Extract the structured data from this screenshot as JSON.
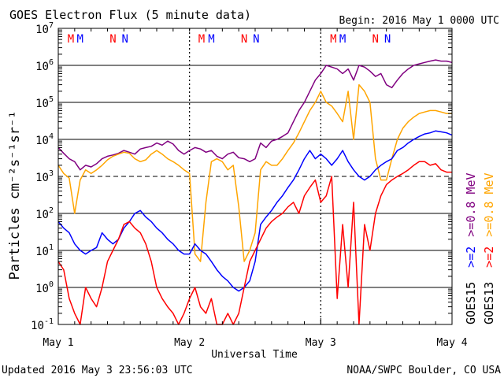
{
  "chart_data": {
    "type": "line",
    "title": "GOES Electron Flux (5 minute data)",
    "begin_label": "Begin: 2016 May 1 0000 UTC",
    "xlabel": "Universal Time",
    "ylabel": "Particles cm⁻²s⁻¹sr⁻¹",
    "yscale": "log",
    "ylim": [
      0.1,
      10000000
    ],
    "xlim": [
      0,
      72
    ],
    "x_unit": "hours since 2016 May 1 0000 UTC",
    "x_ticks": [
      "May 1",
      "May 2",
      "May 3",
      "May 4"
    ],
    "x_tick_hours": [
      0,
      24,
      48,
      72
    ],
    "y_ticks": [
      {
        "base": "10",
        "exp": "-1",
        "value": 0.1
      },
      {
        "base": "10",
        "exp": "0",
        "value": 1
      },
      {
        "base": "10",
        "exp": "1",
        "value": 10
      },
      {
        "base": "10",
        "exp": "2",
        "value": 100
      },
      {
        "base": "10",
        "exp": "3",
        "value": 1000
      },
      {
        "base": "10",
        "exp": "4",
        "value": 10000
      },
      {
        "base": "10",
        "exp": "5",
        "value": 100000
      },
      {
        "base": "10",
        "exp": "6",
        "value": 1000000
      },
      {
        "base": "10",
        "exp": "7",
        "value": 10000000
      }
    ],
    "threshold": {
      "value": 1000,
      "style": "dashed"
    },
    "day_markers": [
      {
        "letter": "M",
        "hour": 2.3,
        "color": "#ff0000"
      },
      {
        "letter": "M",
        "hour": 4.0,
        "color": "#0000ff"
      },
      {
        "letter": "N",
        "hour": 10.0,
        "color": "#ff0000"
      },
      {
        "letter": "N",
        "hour": 12.2,
        "color": "#0000ff"
      },
      {
        "letter": "M",
        "hour": 26.2,
        "color": "#ff0000"
      },
      {
        "letter": "M",
        "hour": 28.0,
        "color": "#0000ff"
      },
      {
        "letter": "N",
        "hour": 34.0,
        "color": "#ff0000"
      },
      {
        "letter": "N",
        "hour": 36.2,
        "color": "#0000ff"
      },
      {
        "letter": "M",
        "hour": 50.3,
        "color": "#ff0000"
      },
      {
        "letter": "M",
        "hour": 52.0,
        "color": "#0000ff"
      },
      {
        "letter": "N",
        "hour": 58.0,
        "color": "#ff0000"
      },
      {
        "letter": "N",
        "hour": 60.2,
        "color": "#0000ff"
      }
    ],
    "grid": "horizontal at each decade, dotted vertical at day boundaries",
    "legend": {
      "placement": "right-vertical",
      "groups": [
        {
          "label": "GOES15",
          "entries": [
            {
              "text": ">=2",
              "color": "#0000ff"
            },
            {
              "text": ">=0.8 MeV",
              "color": "#800080"
            }
          ]
        },
        {
          "label": "GOES13",
          "entries": [
            {
              "text": ">=2",
              "color": "#ff0000"
            },
            {
              "text": ">=0.8 MeV",
              "color": "#ffa500"
            }
          ]
        }
      ]
    },
    "series": [
      {
        "satellite": "GOES15",
        "energy": ">=0.8 MeV",
        "color": "#800080",
        "x": [
          0,
          1,
          2,
          3,
          4,
          5,
          6,
          7,
          8,
          9,
          10,
          11,
          12,
          13,
          14,
          15,
          16,
          17,
          18,
          19,
          20,
          21,
          22,
          23,
          24,
          25,
          26,
          27,
          28,
          29,
          30,
          31,
          32,
          33,
          34,
          35,
          36,
          37,
          38,
          39,
          40,
          41,
          42,
          43,
          44,
          45,
          46,
          47,
          48,
          49,
          50,
          51,
          52,
          53,
          54,
          55,
          56,
          57,
          58,
          59,
          60,
          61,
          62,
          63,
          64,
          65,
          66,
          67,
          68,
          69,
          70,
          71,
          72
        ],
        "values": [
          6000,
          4200,
          3000,
          2500,
          1500,
          2000,
          1800,
          2200,
          3000,
          3500,
          3800,
          4200,
          5000,
          4500,
          4000,
          5500,
          6000,
          6500,
          8000,
          7000,
          9000,
          7500,
          5000,
          4000,
          5000,
          6000,
          5500,
          4500,
          5000,
          3500,
          3000,
          4000,
          4500,
          3200,
          3000,
          2500,
          3000,
          8000,
          6000,
          9000,
          10000,
          12000,
          15000,
          30000,
          60000,
          100000,
          200000,
          400000,
          600000,
          1000000,
          900000,
          800000,
          600000,
          800000,
          400000,
          1000000,
          900000,
          700000,
          500000,
          600000,
          300000,
          250000,
          400000,
          600000,
          800000,
          1000000,
          1100000,
          1200000,
          1300000,
          1400000,
          1300000,
          1300000,
          1200000
        ]
      },
      {
        "satellite": "GOES13",
        "energy": ">=0.8 MeV",
        "color": "#ffa500",
        "x": [
          0,
          1,
          2,
          3,
          4,
          5,
          6,
          7,
          8,
          9,
          10,
          11,
          12,
          13,
          14,
          15,
          16,
          17,
          18,
          19,
          20,
          21,
          22,
          23,
          24,
          25,
          26,
          27,
          28,
          29,
          30,
          31,
          32,
          33,
          34,
          35,
          36,
          37,
          38,
          39,
          40,
          41,
          42,
          43,
          44,
          45,
          46,
          47,
          48,
          49,
          50,
          51,
          52,
          53,
          54,
          55,
          56,
          57,
          58,
          59,
          60,
          61,
          62,
          63,
          64,
          65,
          66,
          67,
          68,
          69,
          70,
          71,
          72
        ],
        "values": [
          2000,
          1200,
          900,
          100,
          800,
          1500,
          1200,
          1500,
          2000,
          2800,
          3500,
          4000,
          4500,
          4200,
          3000,
          2500,
          2800,
          4000,
          5000,
          4000,
          3000,
          2500,
          2000,
          1500,
          1200,
          8,
          5,
          200,
          2500,
          3000,
          2500,
          1500,
          2000,
          150,
          5,
          10,
          30,
          1500,
          2500,
          2000,
          2000,
          3000,
          5000,
          8000,
          15000,
          30000,
          60000,
          100000,
          200000,
          100000,
          80000,
          50000,
          30000,
          200000,
          10000,
          300000,
          200000,
          100000,
          3000,
          800,
          800,
          3000,
          10000,
          20000,
          30000,
          40000,
          50000,
          55000,
          60000,
          60000,
          55000,
          50000,
          50000
        ]
      },
      {
        "satellite": "GOES15",
        "energy": ">=2 MeV",
        "color": "#0000ff",
        "x": [
          0,
          1,
          2,
          3,
          4,
          5,
          6,
          7,
          8,
          9,
          10,
          11,
          12,
          13,
          14,
          15,
          16,
          17,
          18,
          19,
          20,
          21,
          22,
          23,
          24,
          25,
          26,
          27,
          28,
          29,
          30,
          31,
          32,
          33,
          34,
          35,
          36,
          37,
          38,
          39,
          40,
          41,
          42,
          43,
          44,
          45,
          46,
          47,
          48,
          49,
          50,
          51,
          52,
          53,
          54,
          55,
          56,
          57,
          58,
          59,
          60,
          61,
          62,
          63,
          64,
          65,
          66,
          67,
          68,
          69,
          70,
          71,
          72
        ],
        "values": [
          60,
          40,
          30,
          15,
          10,
          8,
          10,
          12,
          30,
          20,
          15,
          20,
          40,
          60,
          100,
          120,
          80,
          60,
          40,
          30,
          20,
          15,
          10,
          8,
          8,
          15,
          10,
          8,
          5,
          3,
          2,
          1.5,
          1,
          0.8,
          1,
          1.5,
          5,
          50,
          80,
          120,
          200,
          300,
          500,
          800,
          1500,
          3000,
          5000,
          3000,
          4000,
          3000,
          2000,
          3000,
          5000,
          2500,
          1500,
          1000,
          800,
          1000,
          1500,
          2000,
          2500,
          3000,
          5000,
          6000,
          8000,
          10000,
          12000,
          14000,
          15000,
          17000,
          16000,
          15000,
          13000
        ]
      },
      {
        "satellite": "GOES13",
        "energy": ">=2 MeV",
        "color": "#ff0000",
        "x": [
          0,
          1,
          2,
          3,
          4,
          5,
          6,
          7,
          8,
          9,
          10,
          11,
          12,
          13,
          14,
          15,
          16,
          17,
          18,
          19,
          20,
          21,
          22,
          23,
          24,
          25,
          26,
          27,
          28,
          29,
          30,
          31,
          32,
          33,
          34,
          35,
          36,
          37,
          38,
          39,
          40,
          41,
          42,
          43,
          44,
          45,
          46,
          47,
          48,
          49,
          50,
          51,
          52,
          53,
          54,
          55,
          56,
          57,
          58,
          59,
          60,
          61,
          62,
          63,
          64,
          65,
          66,
          67,
          68,
          69,
          70,
          71,
          72
        ],
        "values": [
          5,
          3,
          0.5,
          0.2,
          0.1,
          1,
          0.5,
          0.3,
          1,
          5,
          10,
          20,
          50,
          60,
          40,
          30,
          15,
          5,
          1,
          0.5,
          0.3,
          0.2,
          0.1,
          0.2,
          0.5,
          1,
          0.3,
          0.2,
          0.5,
          0.1,
          0.1,
          0.2,
          0.1,
          0.2,
          1,
          5,
          10,
          20,
          40,
          60,
          80,
          100,
          150,
          200,
          100,
          300,
          500,
          800,
          200,
          300,
          1000,
          0.5,
          50,
          1,
          200,
          0.1,
          50,
          10,
          100,
          300,
          600,
          800,
          1000,
          1200,
          1500,
          2000,
          2500,
          2500,
          2000,
          2200,
          1500,
          1300,
          1300
        ]
      }
    ]
  },
  "footer": {
    "updated": "Updated 2016 May  3 23:56:03 UTC",
    "credit": "NOAA/SWPC Boulder, CO USA"
  }
}
